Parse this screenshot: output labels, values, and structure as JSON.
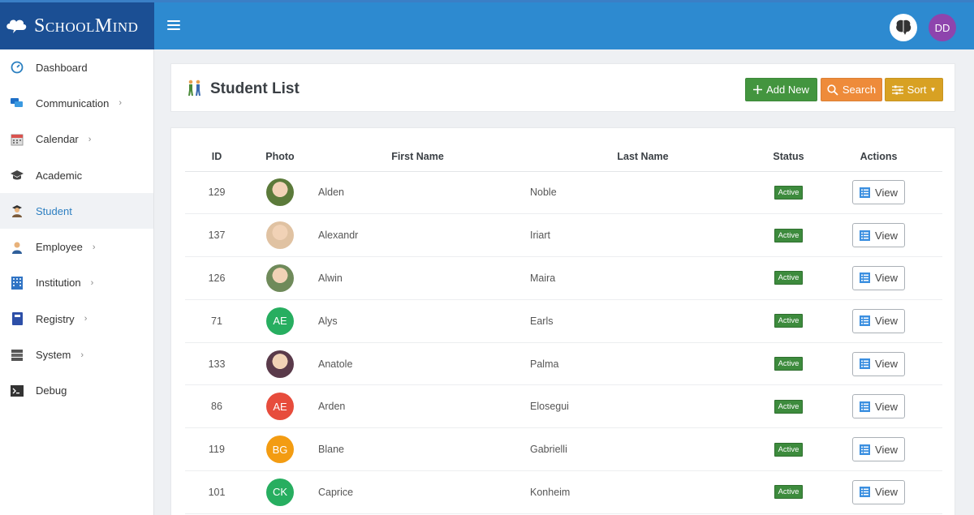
{
  "brand": {
    "name": "SchoolMind"
  },
  "header": {
    "user_initials": "DD",
    "colors": {
      "topbar": "#2d8ad0",
      "brand_bg": "#1b4f94",
      "user_avatar": "#8e44ad"
    }
  },
  "sidebar": {
    "items": [
      {
        "label": "Dashboard",
        "icon": "dashboard-icon",
        "submenu": false,
        "active": false
      },
      {
        "label": "Communication",
        "icon": "chat-icon",
        "submenu": true,
        "active": false
      },
      {
        "label": "Calendar",
        "icon": "calendar-icon",
        "submenu": true,
        "active": false
      },
      {
        "label": "Academic",
        "icon": "graduation-cap-icon",
        "submenu": false,
        "active": false
      },
      {
        "label": "Student",
        "icon": "student-icon",
        "submenu": false,
        "active": true
      },
      {
        "label": "Employee",
        "icon": "employee-icon",
        "submenu": true,
        "active": false
      },
      {
        "label": "Institution",
        "icon": "building-icon",
        "submenu": true,
        "active": false
      },
      {
        "label": "Registry",
        "icon": "book-icon",
        "submenu": true,
        "active": false
      },
      {
        "label": "System",
        "icon": "server-icon",
        "submenu": true,
        "active": false
      },
      {
        "label": "Debug",
        "icon": "terminal-icon",
        "submenu": false,
        "active": false
      }
    ]
  },
  "page": {
    "title": "Student List",
    "buttons": {
      "add": "Add New",
      "search": "Search",
      "sort": "Sort"
    }
  },
  "table": {
    "columns": {
      "id": "ID",
      "photo": "Photo",
      "first": "First Name",
      "last": "Last Name",
      "status": "Status",
      "actions": "Actions"
    },
    "view_label": "View",
    "rows": [
      {
        "id": "129",
        "first": "Alden",
        "last": "Noble",
        "status": "Active",
        "photo_type": "image",
        "initials": "",
        "color": "#5b7a3a"
      },
      {
        "id": "137",
        "first": "Alexandr",
        "last": "Iriart",
        "status": "Active",
        "photo_type": "image",
        "initials": "",
        "color": "#e0c2a2"
      },
      {
        "id": "126",
        "first": "Alwin",
        "last": "Maira",
        "status": "Active",
        "photo_type": "image",
        "initials": "",
        "color": "#6f8a5a"
      },
      {
        "id": "71",
        "first": "Alys",
        "last": "Earls",
        "status": "Active",
        "photo_type": "initials",
        "initials": "AE",
        "color": "#27ae60"
      },
      {
        "id": "133",
        "first": "Anatole",
        "last": "Palma",
        "status": "Active",
        "photo_type": "image",
        "initials": "",
        "color": "#5a3a4a"
      },
      {
        "id": "86",
        "first": "Arden",
        "last": "Elosegui",
        "status": "Active",
        "photo_type": "initials",
        "initials": "AE",
        "color": "#e74c3c"
      },
      {
        "id": "119",
        "first": "Blane",
        "last": "Gabrielli",
        "status": "Active",
        "photo_type": "initials",
        "initials": "BG",
        "color": "#f39c12"
      },
      {
        "id": "101",
        "first": "Caprice",
        "last": "Konheim",
        "status": "Active",
        "photo_type": "initials",
        "initials": "CK",
        "color": "#27ae60"
      }
    ]
  }
}
